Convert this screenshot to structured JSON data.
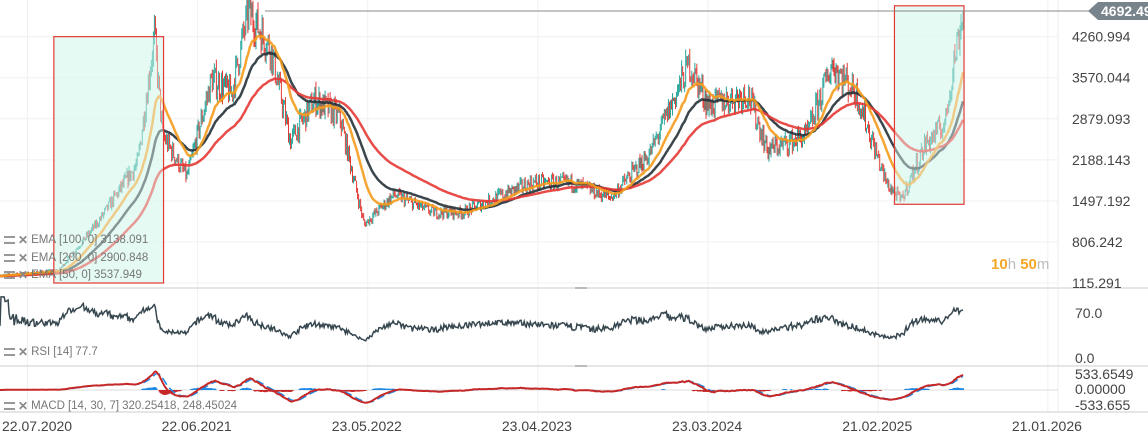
{
  "chart_data": {
    "type": "candlestick",
    "price_axis": {
      "ticks": [
        "4260.994",
        "3570.044",
        "2879.093",
        "2188.143",
        "1497.192",
        "806.242",
        "115.291"
      ],
      "range": [
        115.291,
        4692.495
      ]
    },
    "last_price": "4692.495",
    "date_ticks": [
      "22.07.2020",
      "22.06.2021",
      "23.05.2022",
      "23.04.2023",
      "23.03.2024",
      "21.02.2025",
      "21.01.2026"
    ],
    "date_range": [
      "2020-05-29",
      "2026-02-10"
    ],
    "price_path": [
      [
        "2020-05-29",
        250
      ],
      [
        "2020-09-22",
        330
      ],
      [
        "2020-12-09",
        1150
      ],
      [
        "2021-02-24",
        2130
      ],
      [
        "2021-03-29",
        4290
      ],
      [
        "2021-04-14",
        2600
      ],
      [
        "2021-06-01",
        1900
      ],
      [
        "2021-07-20",
        3550
      ],
      [
        "2021-08-28",
        3300
      ],
      [
        "2021-09-30",
        4700
      ],
      [
        "2021-11-13",
        4050
      ],
      [
        "2021-12-22",
        2500
      ],
      [
        "2022-02-08",
        3200
      ],
      [
        "2022-03-29",
        2900
      ],
      [
        "2022-05-16",
        1100
      ],
      [
        "2022-07-14",
        1600
      ],
      [
        "2022-09-29",
        1300
      ],
      [
        "2022-11-26",
        1300
      ],
      [
        "2023-02-12",
        1600
      ],
      [
        "2023-04-11",
        1800
      ],
      [
        "2023-06-28",
        1800
      ],
      [
        "2023-09-13",
        1550
      ],
      [
        "2023-11-30",
        2300
      ],
      [
        "2024-02-15",
        3800
      ],
      [
        "2024-03-24",
        3100
      ],
      [
        "2024-06-10",
        3300
      ],
      [
        "2024-07-18",
        2350
      ],
      [
        "2024-10-04",
        2600
      ],
      [
        "2024-11-22",
        3800
      ],
      [
        "2025-01-09",
        3300
      ],
      [
        "2025-03-09",
        1800
      ],
      [
        "2025-04-07",
        1500
      ],
      [
        "2025-05-25",
        2450
      ],
      [
        "2025-07-03",
        2800
      ],
      [
        "2025-07-19",
        3800
      ],
      [
        "2025-08-01",
        4400
      ],
      [
        "2025-08-07",
        4692.495
      ]
    ],
    "highlight_boxes": [
      {
        "from": "2020-09-12",
        "to": "2021-04-16",
        "low": 115.291,
        "high": 4260.994
      },
      {
        "from": "2025-03-25",
        "to": "2025-08-09",
        "low": 1440,
        "high": 4780
      }
    ],
    "indicators": [
      {
        "label": "EMA",
        "params": "[100, 0]",
        "value": "3138.091",
        "period": 100,
        "color": "#263238"
      },
      {
        "label": "EMA",
        "params": "[200, 0]",
        "value": "2900.848",
        "period": 200,
        "color": "#e53935"
      },
      {
        "label": "EMA",
        "params": "[50, 0]",
        "value": "3537.949",
        "period": 50,
        "color": "#f59b1c"
      }
    ],
    "rsi": {
      "label": "RSI",
      "params": "[14]",
      "value": "77.7",
      "ticks": [
        "70.0",
        "0.0"
      ],
      "range": [
        0,
        100
      ]
    },
    "macd": {
      "label": "MACD",
      "params": "[14, 30, 7]",
      "value": "320.25418,",
      "signal": "248.45024",
      "ticks": [
        "533.6549",
        "0.00000",
        "-533.655"
      ]
    },
    "colors": {
      "up": "#26a69a",
      "down": "#e53935",
      "box_fill": "#c8f5e6",
      "box_stroke": "#e53935",
      "macd": "#c62828",
      "signal": "#1e88e5"
    }
  },
  "timer": {
    "h": "10",
    "h_unit": "h",
    "m": "50",
    "m_unit": "m"
  }
}
